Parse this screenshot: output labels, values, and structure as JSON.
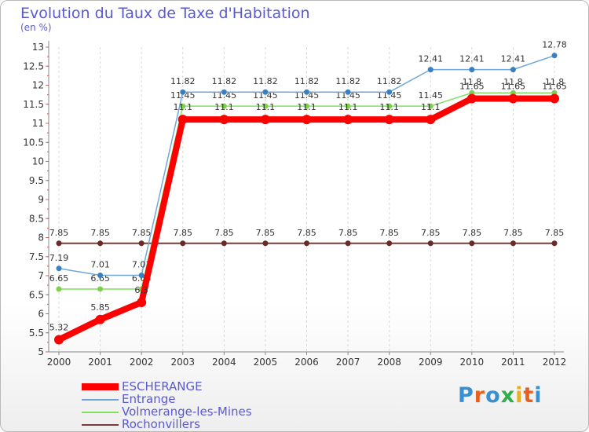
{
  "title": "Evolution du Taux de Taxe d'Habitation",
  "unit_label": "(en %)",
  "logo": {
    "text": "Proxiti"
  },
  "colors": {
    "ESCHERANGE": "#ff0000",
    "Entrange": "#6fa8d8",
    "Volmerange-les-Mines": "#80e060",
    "Rochonvillers": "#7a3a3a"
  },
  "chart_data": {
    "type": "line",
    "title": "Evolution du Taux de Taxe d'Habitation",
    "ylabel": "(en %)",
    "xlabel": "",
    "x": [
      "2000",
      "2001",
      "2002",
      "2003",
      "2004",
      "2005",
      "2006",
      "2007",
      "2008",
      "2009",
      "2010",
      "2011",
      "2012"
    ],
    "ylim": [
      5,
      13
    ],
    "yticks": [
      "5",
      "5.5",
      "6",
      "6.5",
      "7",
      "7.5",
      "8",
      "8.5",
      "9",
      "9.5",
      "10",
      "10.5",
      "11",
      "11.5",
      "12",
      "12.5",
      "13"
    ],
    "series": [
      {
        "name": "Rochonvillers",
        "values": [
          7.85,
          7.85,
          7.85,
          7.85,
          7.85,
          7.85,
          7.85,
          7.85,
          7.85,
          7.85,
          7.85,
          7.85,
          7.85
        ],
        "labels": [
          "7.85",
          "7.85",
          "7.85",
          "7.85",
          "7.85",
          "7.85",
          "7.85",
          "7.85",
          "7.85",
          "7.85",
          "7.85",
          "7.85",
          "7.85"
        ]
      },
      {
        "name": "Volmerange-les-Mines",
        "values": [
          6.65,
          6.65,
          6.65,
          11.45,
          11.45,
          11.45,
          11.45,
          11.45,
          11.45,
          11.45,
          11.8,
          11.8,
          11.8
        ],
        "labels": [
          "6.65",
          "6.65",
          "6.65",
          "11.45",
          "11.45",
          "11.45",
          "11.45",
          "11.45",
          "11.45",
          "11.45",
          "11.8",
          "11.8",
          "11.8"
        ]
      },
      {
        "name": "Entrange",
        "values": [
          7.19,
          7.01,
          7.01,
          11.82,
          11.82,
          11.82,
          11.82,
          11.82,
          11.82,
          12.41,
          12.41,
          12.41,
          12.78
        ],
        "labels": [
          "7.19",
          "7.01",
          "7.01",
          "11.82",
          "11.82",
          "11.82",
          "11.82",
          "11.82",
          "11.82",
          "12.41",
          "12.41",
          "12.41",
          "12.78"
        ]
      },
      {
        "name": "ESCHERANGE",
        "values": [
          5.32,
          5.85,
          6.3,
          11.1,
          11.1,
          11.1,
          11.1,
          11.1,
          11.1,
          11.1,
          11.65,
          11.65,
          11.65
        ],
        "labels": [
          "5.32",
          "5.85",
          "6.3",
          "11.1",
          "11.1",
          "11.1",
          "11.1",
          "11.1",
          "11.1",
          "11.1",
          "11.65",
          "11.65",
          "11.65"
        ]
      }
    ],
    "legend": [
      "ESCHERANGE",
      "Entrange",
      "Volmerange-les-Mines",
      "Rochonvillers"
    ]
  }
}
